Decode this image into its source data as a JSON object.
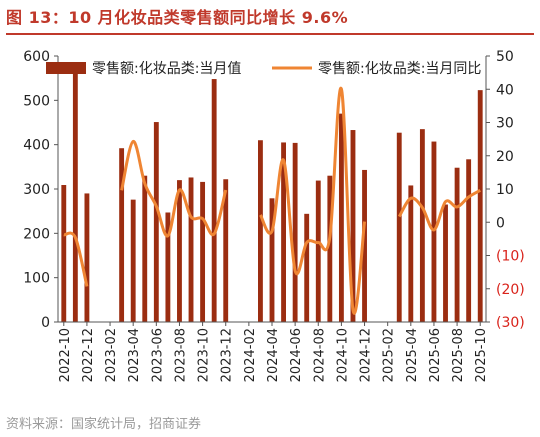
{
  "title": "图 13：10 月化妆品类零售额同比增长 9.6%",
  "source": "资料来源：国家统计局，招商证券",
  "colors": {
    "bar": "#9b2d11",
    "line": "#ef8533",
    "neg_tick": "#d9231b",
    "title": "#c0392b",
    "axis": "#555555"
  },
  "chart_data": {
    "type": "bar+line",
    "categories": [
      "2022-10",
      "2022-11",
      "2022-12",
      "2023-01",
      "2023-02",
      "2023-03",
      "2023-04",
      "2023-05",
      "2023-06",
      "2023-07",
      "2023-08",
      "2023-09",
      "2023-10",
      "2023-11",
      "2023-12",
      "2024-01",
      "2024-02",
      "2024-03",
      "2024-04",
      "2024-05",
      "2024-06",
      "2024-07",
      "2024-08",
      "2024-09",
      "2024-10",
      "2024-11",
      "2024-12",
      "2025-01",
      "2025-02",
      "2025-03",
      "2025-04",
      "2025-05",
      "2025-06",
      "2025-07",
      "2025-08",
      "2025-09",
      "2025-10"
    ],
    "x_tick_labels": [
      "2022-10",
      "2022-12",
      "2023-02",
      "2023-04",
      "2023-06",
      "2023-08",
      "2023-10",
      "2023-12",
      "2024-02",
      "2024-04",
      "2024-06",
      "2024-08",
      "2024-10",
      "2024-12",
      "2025-02",
      "2025-04",
      "2025-06",
      "2025-08",
      "2025-10"
    ],
    "series": [
      {
        "name": "零售额:化妆品类:当月值",
        "kind": "bar",
        "axis": "left",
        "values": [
          309,
          562,
          290,
          null,
          null,
          392,
          276,
          330,
          451,
          247,
          320,
          326,
          316,
          548,
          322,
          null,
          null,
          410,
          279,
          405,
          404,
          244,
          319,
          330,
          470,
          433,
          343,
          null,
          null,
          427,
          308,
          435,
          407,
          265,
          348,
          367,
          523
        ]
      },
      {
        "name": "零售额:化妆品类:当月同比",
        "kind": "line",
        "axis": "right",
        "values": [
          -3.8,
          -4.6,
          -19.3,
          null,
          null,
          9.6,
          24.3,
          11.7,
          4.8,
          -4.1,
          9.7,
          1.6,
          1.1,
          -3.5,
          9.7,
          null,
          null,
          2.2,
          -2.7,
          18.7,
          -14.6,
          -6.1,
          -6.1,
          -4.5,
          40.1,
          -26.4,
          0.2,
          null,
          null,
          1.7,
          7.2,
          4.4,
          -2.3,
          6.2,
          4.6,
          7.6,
          9.6
        ]
      }
    ],
    "y_left": {
      "min": 0,
      "max": 600,
      "ticks": [
        "0",
        "100",
        "200",
        "300",
        "400",
        "500",
        "600"
      ]
    },
    "y_right": {
      "min": -30,
      "max": 50,
      "ticks": [
        "(30)",
        "(20)",
        "(10)",
        "0",
        "10",
        "20",
        "30",
        "40",
        "50"
      ]
    },
    "legend_position": "top"
  }
}
